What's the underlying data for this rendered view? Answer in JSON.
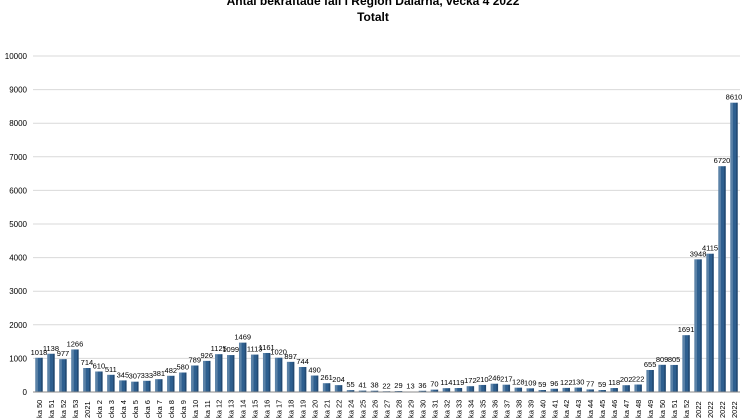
{
  "chart_data": {
    "type": "bar",
    "title": "Antal bekräftade fall i Region Dalarna, vecka 4 2022",
    "subtitle": "Totalt",
    "xlabel": "",
    "ylabel": "",
    "ylim": [
      0,
      10000
    ],
    "yticks": [
      0,
      1000,
      2000,
      3000,
      4000,
      5000,
      6000,
      7000,
      8000,
      9000,
      10000
    ],
    "grid": true,
    "bar_color": "#2e5f8f",
    "categories": [
      "ka 50",
      "ka 51",
      "ka 52",
      "ka 53",
      "2021",
      "cka 2",
      "cka 3",
      "cka 4",
      "cka 5",
      "cka 6",
      "cka 7",
      "cka 8",
      "cka 9",
      "ka 10",
      "ka 11",
      "ka 12",
      "ka 13",
      "ka 14",
      "ka 15",
      "ka 16",
      "ka 17",
      "ka 18",
      "ka 19",
      "ka 20",
      "ka 21",
      "ka 22",
      "ka 24",
      "ka 25",
      "ka 26",
      "ka 27",
      "ka 28",
      "ka 29",
      "ka 30",
      "ka 31",
      "ka 32",
      "ka 33",
      "ka 34",
      "ka 35",
      "ka 36",
      "ka 37",
      "ka 38",
      "ka 39",
      "ka 40",
      "ka 41",
      "ka 42",
      "ka 43",
      "ka 44",
      "ka 45",
      "ka 46",
      "ka 47",
      "ka 48",
      "ka 49",
      "ka 50",
      "ka 51",
      "ka 52",
      "2022",
      "2022",
      "2022",
      "2022"
    ],
    "values": [
      1018,
      1138,
      977,
      1266,
      714,
      610,
      511,
      345,
      307,
      333,
      381,
      482,
      580,
      789,
      926,
      1125,
      1099,
      1469,
      1113,
      1161,
      1020,
      897,
      744,
      490,
      261,
      204,
      55,
      41,
      38,
      22,
      29,
      13,
      36,
      70,
      114,
      119,
      172,
      210,
      246,
      217,
      128,
      109,
      59,
      96,
      122,
      130,
      77,
      59,
      118,
      202,
      222,
      655,
      809,
      805,
      1691,
      3948,
      4115,
      6720,
      8610
    ]
  }
}
